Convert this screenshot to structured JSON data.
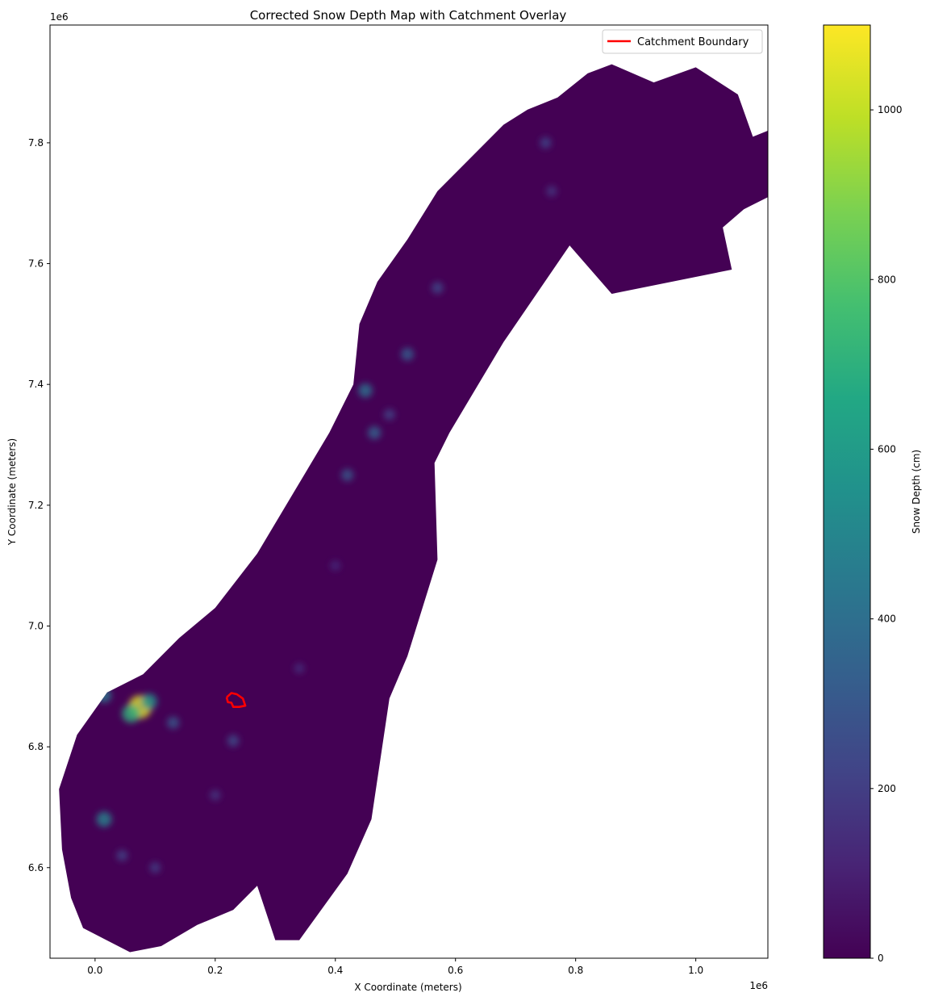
{
  "chart_data": {
    "type": "heatmap",
    "title": "Corrected Snow Depth Map with Catchment Overlay",
    "xlabel": "X Coordinate (meters)",
    "ylabel": "Y Coordinate (meters)",
    "x_offset_label": "1e6",
    "y_offset_label": "1e6",
    "xlim": [
      -0.075,
      1.12
    ],
    "ylim": [
      6.45,
      7.995
    ],
    "x_ticks": [
      0.0,
      0.2,
      0.4,
      0.6,
      0.8,
      1.0
    ],
    "x_tick_labels": [
      "0.0",
      "0.2",
      "0.4",
      "0.6",
      "0.8",
      "1.0"
    ],
    "y_ticks": [
      6.6,
      6.8,
      7.0,
      7.2,
      7.4,
      7.6,
      7.8
    ],
    "y_tick_labels": [
      "6.6",
      "6.8",
      "7.0",
      "7.2",
      "7.4",
      "7.6",
      "7.8"
    ],
    "grid": false,
    "legend": {
      "placement": "top-right",
      "entries": [
        {
          "label": "Catchment Boundary",
          "color": "#ff0000"
        }
      ]
    },
    "colorbar": {
      "label": "Snow Depth (cm)",
      "colormap": "viridis",
      "range": [
        0,
        1100
      ],
      "ticks": [
        0,
        200,
        400,
        600,
        800,
        1000
      ],
      "tick_labels": [
        "0",
        "200",
        "400",
        "600",
        "800",
        "1000"
      ]
    },
    "land_outline": [
      [
        0.058,
        6.46
      ],
      [
        0.11,
        6.47
      ],
      [
        0.17,
        6.505
      ],
      [
        0.23,
        6.53
      ],
      [
        0.27,
        6.57
      ],
      [
        0.3,
        6.48
      ],
      [
        0.34,
        6.48
      ],
      [
        0.42,
        6.59
      ],
      [
        0.46,
        6.68
      ],
      [
        0.49,
        6.88
      ],
      [
        0.52,
        6.95
      ],
      [
        0.57,
        7.11
      ],
      [
        0.565,
        7.27
      ],
      [
        0.59,
        7.32
      ],
      [
        0.68,
        7.47
      ],
      [
        0.79,
        7.63
      ],
      [
        0.86,
        7.55
      ],
      [
        1.06,
        7.59
      ],
      [
        1.045,
        7.66
      ],
      [
        1.08,
        7.69
      ],
      [
        1.12,
        7.71
      ],
      [
        1.12,
        7.82
      ],
      [
        1.095,
        7.81
      ],
      [
        1.07,
        7.88
      ],
      [
        1.0,
        7.925
      ],
      [
        0.93,
        7.9
      ],
      [
        0.86,
        7.93
      ],
      [
        0.82,
        7.915
      ],
      [
        0.77,
        7.875
      ],
      [
        0.72,
        7.855
      ],
      [
        0.68,
        7.83
      ],
      [
        0.63,
        7.78
      ],
      [
        0.57,
        7.72
      ],
      [
        0.52,
        7.64
      ],
      [
        0.47,
        7.57
      ],
      [
        0.44,
        7.5
      ],
      [
        0.43,
        7.4
      ],
      [
        0.39,
        7.32
      ],
      [
        0.33,
        7.22
      ],
      [
        0.27,
        7.12
      ],
      [
        0.2,
        7.03
      ],
      [
        0.14,
        6.98
      ],
      [
        0.08,
        6.92
      ],
      [
        0.02,
        6.89
      ],
      [
        -0.03,
        6.82
      ],
      [
        -0.06,
        6.73
      ],
      [
        -0.055,
        6.63
      ],
      [
        -0.04,
        6.55
      ],
      [
        -0.02,
        6.5
      ]
    ],
    "catchment_boundary": [
      [
        0.219,
        6.882
      ],
      [
        0.227,
        6.889
      ],
      [
        0.236,
        6.887
      ],
      [
        0.246,
        6.88
      ],
      [
        0.25,
        6.868
      ],
      [
        0.24,
        6.866
      ],
      [
        0.23,
        6.866
      ],
      [
        0.227,
        6.873
      ],
      [
        0.221,
        6.874
      ],
      [
        0.219,
        6.882
      ]
    ],
    "snow_hotspots": [
      {
        "x": 0.075,
        "y": 6.866,
        "value": 1050
      },
      {
        "x": 0.06,
        "y": 6.855,
        "value": 700
      },
      {
        "x": 0.09,
        "y": 6.875,
        "value": 550
      },
      {
        "x": 0.015,
        "y": 6.885,
        "value": 450
      },
      {
        "x": 0.015,
        "y": 6.68,
        "value": 500
      },
      {
        "x": 0.13,
        "y": 6.84,
        "value": 300
      },
      {
        "x": 0.045,
        "y": 6.62,
        "value": 220
      },
      {
        "x": 0.1,
        "y": 6.6,
        "value": 200
      },
      {
        "x": 0.23,
        "y": 6.81,
        "value": 260
      },
      {
        "x": 0.2,
        "y": 6.72,
        "value": 180
      },
      {
        "x": 0.34,
        "y": 6.93,
        "value": 150
      },
      {
        "x": 0.45,
        "y": 7.39,
        "value": 420
      },
      {
        "x": 0.465,
        "y": 7.32,
        "value": 350
      },
      {
        "x": 0.42,
        "y": 7.25,
        "value": 300
      },
      {
        "x": 0.52,
        "y": 7.45,
        "value": 330
      },
      {
        "x": 0.49,
        "y": 7.35,
        "value": 220
      },
      {
        "x": 0.57,
        "y": 7.56,
        "value": 250
      },
      {
        "x": 0.75,
        "y": 7.8,
        "value": 230
      },
      {
        "x": 0.76,
        "y": 7.72,
        "value": 180
      },
      {
        "x": 0.4,
        "y": 7.1,
        "value": 140
      }
    ]
  }
}
